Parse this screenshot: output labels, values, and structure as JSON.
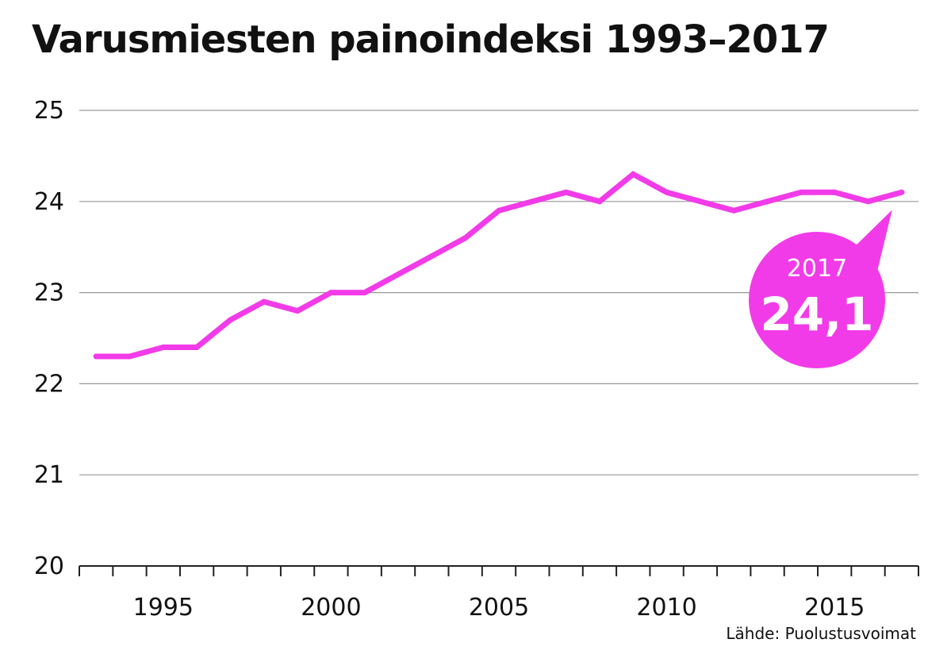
{
  "title": "Varusmiesten painoindeksi 1993–2017",
  "source": "Lähde: Puolustusvoimat",
  "colors": {
    "line": "#f23be8",
    "grid": "#999999",
    "axis": "#222222",
    "text": "#111111"
  },
  "chart_data": {
    "type": "line",
    "title": "Varusmiesten painoindeksi 1993–2017",
    "xlabel": "",
    "ylabel": "",
    "x": [
      1993,
      1994,
      1995,
      1996,
      1997,
      1998,
      1999,
      2000,
      2001,
      2002,
      2003,
      2004,
      2005,
      2006,
      2007,
      2008,
      2009,
      2010,
      2011,
      2012,
      2013,
      2014,
      2015,
      2016,
      2017
    ],
    "series": [
      {
        "values": [
          22.3,
          22.3,
          22.4,
          22.4,
          22.7,
          22.9,
          22.8,
          23.0,
          23.0,
          23.2,
          23.4,
          23.6,
          23.9,
          24.0,
          24.1,
          24.0,
          24.3,
          24.1,
          24.0,
          23.9,
          24.0,
          24.1,
          24.1,
          24.0,
          24.1
        ]
      }
    ],
    "xlim": [
      1992.5,
      2017.5
    ],
    "ylim": [
      20,
      25
    ],
    "x_ticks": [
      "1995",
      "2000",
      "2005",
      "2010",
      "2015"
    ],
    "y_ticks": [
      "20",
      "21",
      "22",
      "23",
      "24",
      "25"
    ],
    "grid": true,
    "legend": "none",
    "annotation": {
      "year": "2017",
      "value": "24,1"
    }
  }
}
